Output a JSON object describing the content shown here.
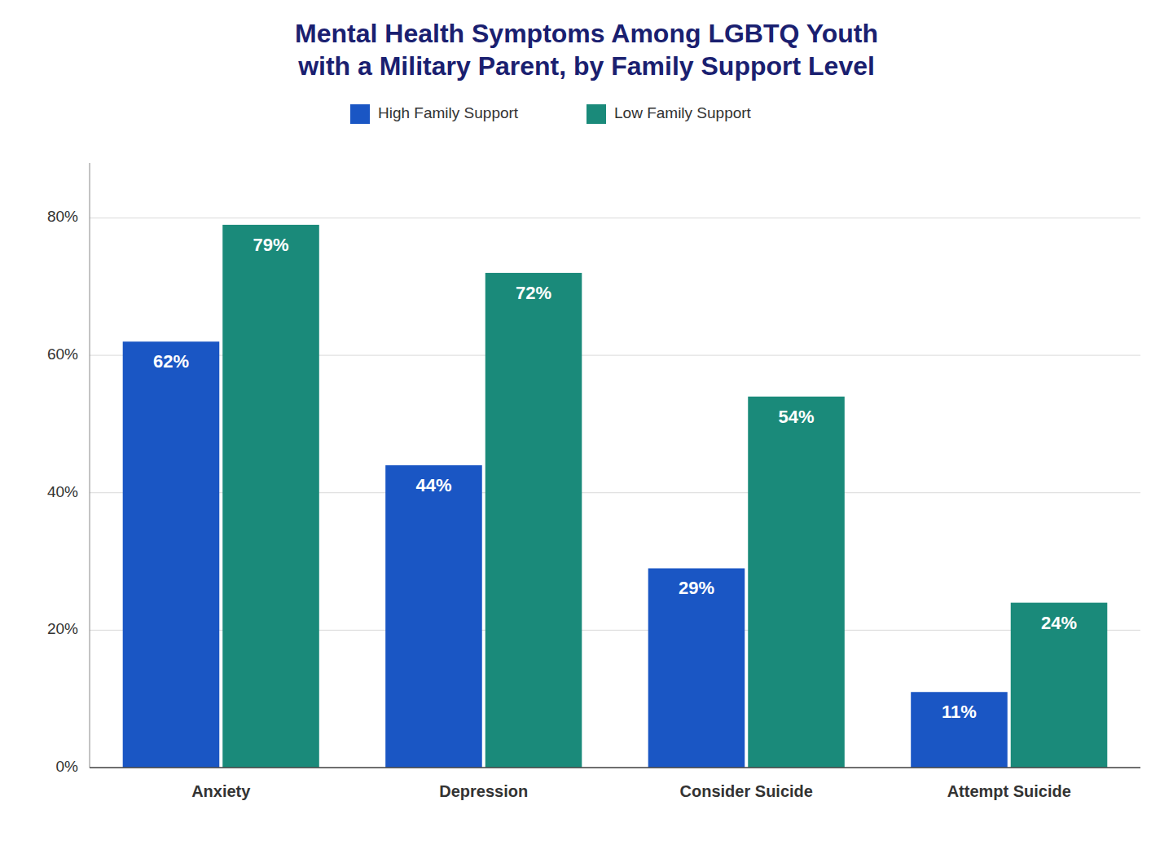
{
  "chart_data": {
    "type": "bar",
    "title": "Mental Health Symptoms Among LGBTQ Youth\nwith a Military Parent, by Family Support Level",
    "categories": [
      "Anxiety",
      "Depression",
      "Consider Suicide",
      "Attempt Suicide"
    ],
    "series": [
      {
        "name": "High Family Support",
        "color": "#1a56c4",
        "values": [
          62,
          44,
          29,
          11
        ],
        "value_labels": [
          "62%",
          "44%",
          "29%",
          "11%"
        ]
      },
      {
        "name": "Low Family Support",
        "color": "#1a8a7a",
        "values": [
          79,
          72,
          54,
          24
        ],
        "value_labels": [
          "79%",
          "72%",
          "54%",
          "24%"
        ]
      }
    ],
    "ylim": [
      0,
      88
    ],
    "yticks": [
      {
        "value": 0,
        "label": "0%"
      },
      {
        "value": 20,
        "label": "20%"
      },
      {
        "value": 40,
        "label": "40%"
      },
      {
        "value": 60,
        "label": "60%"
      },
      {
        "value": 80,
        "label": "80%"
      }
    ],
    "grid": true,
    "legend": "top",
    "data_labels": true
  }
}
